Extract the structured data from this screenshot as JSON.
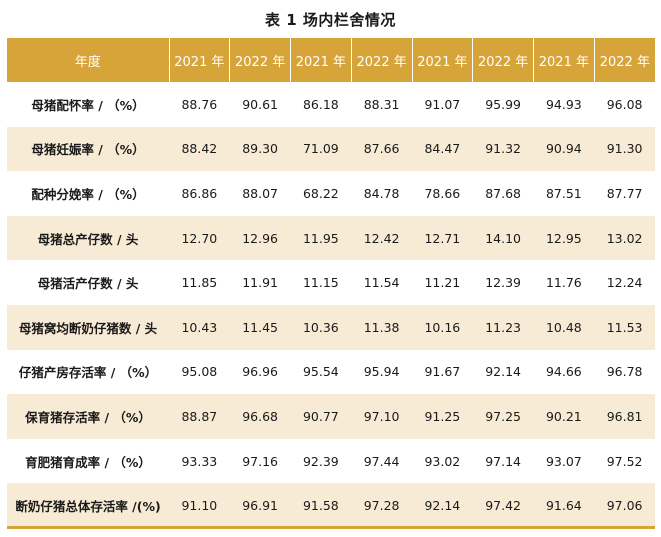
{
  "title": "表 1  场内栏舍情况",
  "headers": [
    "年度",
    "2021 年",
    "2022 年",
    "2021 年",
    "2022 年",
    "2021 年",
    "2022 年",
    "2021 年",
    "2022 年"
  ],
  "rows": [
    {
      "label": "母猪配怀率 / （%）",
      "values": [
        "88.76",
        "90.61",
        "86.18",
        "88.31",
        "91.07",
        "95.99",
        "94.93",
        "96.08"
      ]
    },
    {
      "label": "母猪妊娠率 / （%）",
      "values": [
        "88.42",
        "89.30",
        "71.09",
        "87.66",
        "84.47",
        "91.32",
        "90.94",
        "91.30"
      ]
    },
    {
      "label": "配种分娩率 / （%）",
      "values": [
        "86.86",
        "88.07",
        "68.22",
        "84.78",
        "78.66",
        "87.68",
        "87.51",
        "87.77"
      ]
    },
    {
      "label": "母猪总产仔数 / 头",
      "values": [
        "12.70",
        "12.96",
        "11.95",
        "12.42",
        "12.71",
        "14.10",
        "12.95",
        "13.02"
      ]
    },
    {
      "label": "母猪活产仔数 / 头",
      "values": [
        "11.85",
        "11.91",
        "11.15",
        "11.54",
        "11.21",
        "12.39",
        "11.76",
        "12.24"
      ]
    },
    {
      "label": "母猪窝均断奶仔猪数 / 头",
      "values": [
        "10.43",
        "11.45",
        "10.36",
        "11.38",
        "10.16",
        "11.23",
        "10.48",
        "11.53"
      ]
    },
    {
      "label": "仔猪产房存活率 / （%）",
      "values": [
        "95.08",
        "96.96",
        "95.54",
        "95.94",
        "91.67",
        "92.14",
        "94.66",
        "96.78"
      ]
    },
    {
      "label": "保育猪存活率 / （%）",
      "values": [
        "88.87",
        "96.68",
        "90.77",
        "97.10",
        "91.25",
        "97.25",
        "90.21",
        "96.81"
      ]
    },
    {
      "label": "育肥猪育成率 / （%）",
      "values": [
        "93.33",
        "97.16",
        "92.39",
        "97.44",
        "93.02",
        "97.14",
        "93.07",
        "97.52"
      ]
    },
    {
      "label": "断奶仔猪总体存活率 /(%)",
      "values": [
        "91.10",
        "96.91",
        "91.58",
        "97.28",
        "92.14",
        "97.42",
        "91.64",
        "97.06"
      ]
    }
  ],
  "colors": {
    "header_bg": "#d7a43a",
    "band_bg": "#f8ebd6",
    "text": "#1a1a1a"
  }
}
